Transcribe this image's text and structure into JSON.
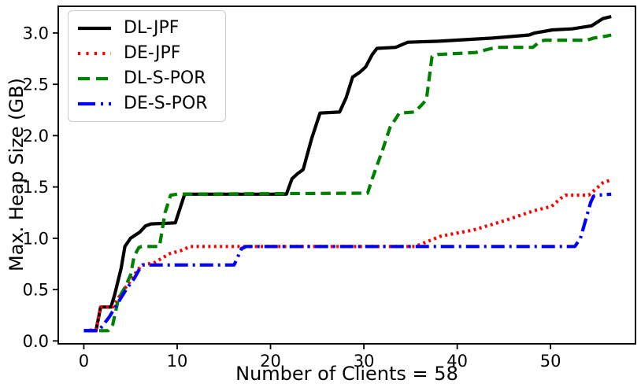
{
  "chart_data": {
    "type": "line",
    "title": "",
    "xlabel": "Number of Clients = 58",
    "ylabel": "Max. Heap Size (GB)",
    "xlim": [
      -2.74,
      59.1
    ],
    "ylim": [
      -0.028,
      3.26
    ],
    "xticks": [
      "0",
      "10",
      "20",
      "30",
      "40",
      "50"
    ],
    "xtick_values": [
      0,
      10,
      20,
      30,
      40,
      50
    ],
    "yticks": [
      "0.0",
      "0.5",
      "1.0",
      "1.5",
      "2.0",
      "2.5",
      "3.0"
    ],
    "ytick_values": [
      0,
      0.5,
      1,
      1.5,
      2,
      2.5,
      3
    ],
    "grid": false,
    "legend_position": "upper-left",
    "axis_color": "#000000",
    "series": [
      {
        "name": "DL-JPF",
        "color": "#000000",
        "style": "solid",
        "points": [
          [
            0,
            0.1
          ],
          [
            1.3,
            0.1
          ],
          [
            1.8,
            0.33
          ],
          [
            2.9,
            0.33
          ],
          [
            3.3,
            0.45
          ],
          [
            4.0,
            0.71
          ],
          [
            4.4,
            0.92
          ],
          [
            5.0,
            1.0
          ],
          [
            6.0,
            1.06
          ],
          [
            6.6,
            1.12
          ],
          [
            7.2,
            1.14
          ],
          [
            9.8,
            1.15
          ],
          [
            10.8,
            1.43
          ],
          [
            21.7,
            1.43
          ],
          [
            22.3,
            1.58
          ],
          [
            22.9,
            1.63
          ],
          [
            23.5,
            1.67
          ],
          [
            24.4,
            1.97
          ],
          [
            25.3,
            2.22
          ],
          [
            27.4,
            2.23
          ],
          [
            28.1,
            2.37
          ],
          [
            28.8,
            2.57
          ],
          [
            29.6,
            2.62
          ],
          [
            30.2,
            2.67
          ],
          [
            30.9,
            2.79
          ],
          [
            31.4,
            2.85
          ],
          [
            33.4,
            2.86
          ],
          [
            34.7,
            2.91
          ],
          [
            38.0,
            2.92
          ],
          [
            43.8,
            2.95
          ],
          [
            47.7,
            2.98
          ],
          [
            48.3,
            3.0
          ],
          [
            50.2,
            3.03
          ],
          [
            52.3,
            3.04
          ],
          [
            54.4,
            3.07
          ],
          [
            55.6,
            3.14
          ],
          [
            56.5,
            3.16
          ]
        ]
      },
      {
        "name": "DE-JPF",
        "color": "#ff0000",
        "style": "dotted",
        "points": [
          [
            0,
            0.1
          ],
          [
            1.3,
            0.11
          ],
          [
            1.8,
            0.33
          ],
          [
            3.1,
            0.33
          ],
          [
            3.7,
            0.42
          ],
          [
            4.3,
            0.5
          ],
          [
            4.8,
            0.56
          ],
          [
            5.6,
            0.67
          ],
          [
            6.2,
            0.74
          ],
          [
            7.5,
            0.76
          ],
          [
            9.2,
            0.85
          ],
          [
            10.4,
            0.88
          ],
          [
            11.4,
            0.92
          ],
          [
            35.5,
            0.92
          ],
          [
            38.2,
            1.02
          ],
          [
            41.7,
            1.08
          ],
          [
            45.0,
            1.17
          ],
          [
            48.3,
            1.27
          ],
          [
            50.1,
            1.31
          ],
          [
            51.1,
            1.39
          ],
          [
            51.6,
            1.42
          ],
          [
            54.1,
            1.42
          ],
          [
            55.6,
            1.54
          ],
          [
            56.5,
            1.57
          ]
        ]
      },
      {
        "name": "DL-S-POR",
        "color": "#008000",
        "style": "dashed",
        "points": [
          [
            0,
            0.1
          ],
          [
            2.6,
            0.1
          ],
          [
            3.1,
            0.16
          ],
          [
            3.7,
            0.41
          ],
          [
            4.4,
            0.52
          ],
          [
            5.0,
            0.64
          ],
          [
            5.4,
            0.83
          ],
          [
            5.9,
            0.91
          ],
          [
            6.2,
            0.92
          ],
          [
            8.1,
            0.92
          ],
          [
            8.7,
            1.25
          ],
          [
            9.3,
            1.42
          ],
          [
            10.0,
            1.43
          ],
          [
            30.4,
            1.44
          ],
          [
            30.9,
            1.58
          ],
          [
            32.0,
            1.86
          ],
          [
            32.8,
            2.08
          ],
          [
            33.8,
            2.22
          ],
          [
            35.4,
            2.23
          ],
          [
            36.1,
            2.29
          ],
          [
            36.7,
            2.35
          ],
          [
            37.3,
            2.77
          ],
          [
            37.9,
            2.79
          ],
          [
            42.0,
            2.81
          ],
          [
            43.7,
            2.85
          ],
          [
            44.3,
            2.86
          ],
          [
            48.1,
            2.86
          ],
          [
            48.9,
            2.92
          ],
          [
            49.4,
            2.93
          ],
          [
            53.9,
            2.93
          ],
          [
            54.6,
            2.95
          ],
          [
            56.0,
            2.97
          ],
          [
            56.5,
            2.98
          ]
        ]
      },
      {
        "name": "DE-S-POR",
        "color": "#0000ff",
        "style": "dashdot",
        "points": [
          [
            0,
            0.1
          ],
          [
            1.6,
            0.1
          ],
          [
            2.7,
            0.23
          ],
          [
            3.5,
            0.35
          ],
          [
            4.6,
            0.51
          ],
          [
            5.4,
            0.61
          ],
          [
            5.9,
            0.69
          ],
          [
            6.3,
            0.74
          ],
          [
            16.1,
            0.74
          ],
          [
            16.9,
            0.9
          ],
          [
            17.4,
            0.92
          ],
          [
            52.6,
            0.92
          ],
          [
            53.2,
            1.0
          ],
          [
            54.3,
            1.35
          ],
          [
            54.6,
            1.41
          ],
          [
            55.0,
            1.42
          ],
          [
            56.5,
            1.43
          ]
        ]
      }
    ]
  }
}
